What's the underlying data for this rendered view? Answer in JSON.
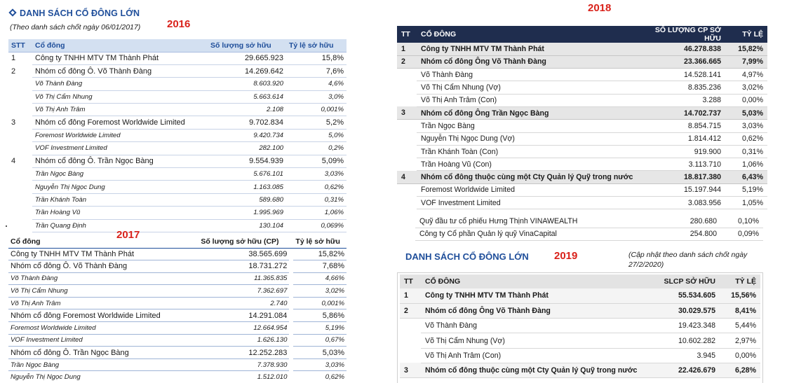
{
  "p2016": {
    "title": "DANH SÁCH CỔ ĐÔNG LỚN",
    "subtitle": "(Theo danh sách chốt ngày 06/01/2017)",
    "year": "2016",
    "headers": [
      "STT",
      "Cổ đông",
      "Số lượng sở hữu",
      "Tỷ lệ sở hữu"
    ],
    "rows": [
      {
        "stt": "1",
        "name": "Công ty TNHH MTV TM Thành Phát",
        "qty": "29.665.923",
        "pct": "15,8%",
        "sub": false
      },
      {
        "stt": "2",
        "name": "Nhóm cổ đông Ô. Võ Thành Đàng",
        "qty": "14.269.642",
        "pct": "7,6%",
        "sub": false
      },
      {
        "stt": "",
        "name": "Võ Thành Đàng",
        "qty": "8.603.920",
        "pct": "4,6%",
        "sub": true
      },
      {
        "stt": "",
        "name": "Võ Thị Cẩm Nhung",
        "qty": "5.663.614",
        "pct": "3,0%",
        "sub": true
      },
      {
        "stt": "",
        "name": "Võ Thị Anh Trâm",
        "qty": "2.108",
        "pct": "0,001%",
        "sub": true
      },
      {
        "stt": "3",
        "name": "Nhóm cổ đông Foremost Worldwide Limited",
        "qty": "9.702.834",
        "pct": "5,2%",
        "sub": false
      },
      {
        "stt": "",
        "name": "Foremost Worldwide Limited",
        "qty": "9.420.734",
        "pct": "5,0%",
        "sub": true
      },
      {
        "stt": "",
        "name": "VOF Investment Limited",
        "qty": "282.100",
        "pct": "0,2%",
        "sub": true
      },
      {
        "stt": "4",
        "name": "Nhóm cổ đông Ô. Trần Ngọc Bàng",
        "qty": "9.554.939",
        "pct": "5,09%",
        "sub": false
      },
      {
        "stt": "",
        "name": "Trần Ngọc Bàng",
        "qty": "5.676.101",
        "pct": "3,03%",
        "sub": true
      },
      {
        "stt": "",
        "name": "Nguyễn Thị Ngọc Dung",
        "qty": "1.163.085",
        "pct": "0,62%",
        "sub": true
      },
      {
        "stt": "",
        "name": "Trần Khánh Toàn",
        "qty": "589.680",
        "pct": "0,31%",
        "sub": true
      },
      {
        "stt": "",
        "name": "Trần Hoàng Vũ",
        "qty": "1.995.969",
        "pct": "1,06%",
        "sub": true
      },
      {
        "stt": "",
        "name": "Trần Quang Định",
        "qty": "130.104",
        "pct": "0,069%",
        "sub": true
      }
    ]
  },
  "p2017": {
    "year": "2017",
    "headers": [
      "Cổ đông",
      "Số lượng sở hữu (CP)",
      "Tỷ lệ sở hữu"
    ],
    "rows": [
      {
        "name": "Công ty TNHH MTV TM Thành Phát",
        "qty": "38.565.699",
        "pct": "15,82%",
        "sub": false
      },
      {
        "name": "Nhóm cổ đông Ô. Võ Thành Đàng",
        "qty": "18.731.272",
        "pct": "7,68%",
        "sub": false
      },
      {
        "name": "Võ Thành Đàng",
        "qty": "11.365.835",
        "pct": "4,66%",
        "sub": true
      },
      {
        "name": "Võ Thị Cẩm Nhung",
        "qty": "7.362.697",
        "pct": "3,02%",
        "sub": true
      },
      {
        "name": "Võ Thị Anh Trâm",
        "qty": "2.740",
        "pct": "0,001%",
        "sub": true
      },
      {
        "name": "Nhóm cổ đông Foremost Worldwide Limited",
        "qty": "14.291.084",
        "pct": "5,86%",
        "sub": false
      },
      {
        "name": "Foremost Worldwide Limited",
        "qty": "12.664.954",
        "pct": "5,19%",
        "sub": true
      },
      {
        "name": "VOF Investment Limited",
        "qty": "1.626.130",
        "pct": "0,67%",
        "sub": true
      },
      {
        "name": "Nhóm cổ đông Ô. Trần Ngọc Bàng",
        "qty": "12.252.283",
        "pct": "5,03%",
        "sub": false
      },
      {
        "name": "Trần Ngọc Bàng",
        "qty": "7.378.930",
        "pct": "3,03%",
        "sub": true
      },
      {
        "name": "Nguyễn Thị Ngọc Dung",
        "qty": "1.512.010",
        "pct": "0,62%",
        "sub": true
      }
    ]
  },
  "p2018": {
    "year": "2018",
    "headers": [
      "TT",
      "CỔ ĐÔNG",
      "SỐ LƯỢNG CP SỞ HỮU",
      "TỶ LỆ"
    ],
    "rows": [
      {
        "tt": "1",
        "name": "Công ty TNHH MTV TM Thành Phát",
        "qty": "46.278.838",
        "pct": "15,82%",
        "grp": true
      },
      {
        "tt": "2",
        "name": "Nhóm cổ đông Ông Võ Thành Đàng",
        "qty": "23.366.665",
        "pct": "7,99%",
        "grp": true
      },
      {
        "tt": "",
        "name": "Võ Thành Đàng",
        "qty": "14.528.141",
        "pct": "4,97%",
        "grp": false
      },
      {
        "tt": "",
        "name": "Võ Thị Cẩm Nhung (Vợ)",
        "qty": "8.835.236",
        "pct": "3,02%",
        "grp": false
      },
      {
        "tt": "",
        "name": "Võ Thị Anh Trâm (Con)",
        "qty": "3.288",
        "pct": "0,00%",
        "grp": false
      },
      {
        "tt": "3",
        "name": "Nhóm cổ đông Ông Trần Ngọc Bàng",
        "qty": "14.702.737",
        "pct": "5,03%",
        "grp": true
      },
      {
        "tt": "",
        "name": "Trần Ngọc Bàng",
        "qty": "8.854.715",
        "pct": "3,03%",
        "grp": false
      },
      {
        "tt": "",
        "name": "Nguyễn Thị Ngọc Dung (Vợ)",
        "qty": "1.814.412",
        "pct": "0,62%",
        "grp": false
      },
      {
        "tt": "",
        "name": "Trần Khánh Toàn (Con)",
        "qty": "919.900",
        "pct": "0,31%",
        "grp": false
      },
      {
        "tt": "",
        "name": "Trần Hoàng Vũ (Con)",
        "qty": "3.113.710",
        "pct": "1,06%",
        "grp": false
      },
      {
        "tt": "4",
        "name": "Nhóm cổ đông thuộc cùng một Cty Quản lý Quỹ trong nước",
        "qty": "18.817.380",
        "pct": "6,43%",
        "grp": true
      },
      {
        "tt": "",
        "name": "Foremost Worldwide Limited",
        "qty": "15.197.944",
        "pct": "5,19%",
        "grp": false
      },
      {
        "tt": "",
        "name": "VOF Investment Limited",
        "qty": "3.083.956",
        "pct": "1,05%",
        "grp": false
      }
    ],
    "extra_rows": [
      {
        "name": "Quỹ đầu tư cổ phiếu Hưng Thịnh VINAWEALTH",
        "qty": "280.680",
        "pct": "0,10%"
      },
      {
        "name": "Công ty Cổ phần Quản lý quỹ VinaCapital",
        "qty": "254.800",
        "pct": "0,09%"
      }
    ]
  },
  "p2019": {
    "title": "DANH SÁCH CỔ ĐÔNG LỚN",
    "year": "2019",
    "note": "(Cập nhật theo danh sách chốt ngày 27/2/2020)",
    "headers": [
      "TT",
      "CỔ ĐÔNG",
      "SLCP SỞ HỮU",
      "TỶ LỆ"
    ],
    "rows": [
      {
        "tt": "1",
        "name": "Công ty TNHH MTV TM Thành Phát",
        "qty": "55.534.605",
        "pct": "15,56%",
        "grp": true
      },
      {
        "tt": "2",
        "name": "Nhóm cổ đông Ông Võ Thành Đàng",
        "qty": "30.029.575",
        "pct": "8,41%",
        "grp": true
      },
      {
        "tt": "",
        "name": "Võ Thành Đàng",
        "qty": "19.423.348",
        "pct": "5,44%",
        "grp": false
      },
      {
        "tt": "",
        "name": "Võ Thị Cẩm Nhung (Vợ)",
        "qty": "10.602.282",
        "pct": "2,97%",
        "grp": false
      },
      {
        "tt": "",
        "name": "Võ Thị Anh Trâm (Con)",
        "qty": "3.945",
        "pct": "0,00%",
        "grp": false
      },
      {
        "tt": "3",
        "name": "Nhóm cổ đông thuộc cùng một Cty Quản lý Quỹ trong nước",
        "qty": "22.426.679",
        "pct": "6,28%",
        "grp": true
      }
    ]
  }
}
